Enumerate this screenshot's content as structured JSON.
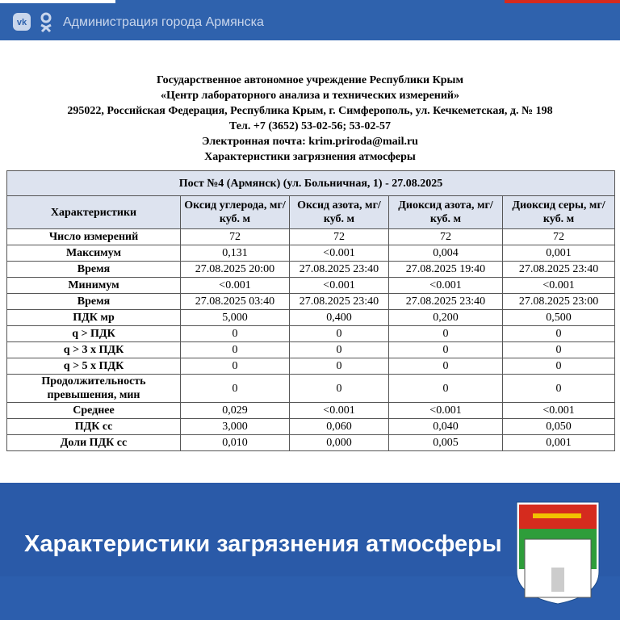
{
  "header": {
    "org": "Администрация города Армянска"
  },
  "document": {
    "lines": [
      "Государственное автономное учреждение Республики Крым",
      "«Центр лабораторного анализа и технических измерений»",
      "295022, Российская Федерация, Республика Крым, г. Симферополь, ул. Кечкеметская, д. № 198",
      "Тел. +7 (3652) 53-02-56; 53-02-57",
      "Электронная почта: krim.priroda@mail.ru",
      "Характеристики загрязнения атмосферы"
    ]
  },
  "table": {
    "caption": "Пост №4 (Армянск) (ул. Больничная, 1) - 27.08.2025",
    "columns": [
      "Характеристики",
      "Оксид углерода, мг/куб. м",
      "Оксид азота, мг/куб. м",
      "Диоксид азота, мг/куб. м",
      "Диоксид серы, мг/куб. м"
    ],
    "rows": [
      [
        "Число измерений",
        "72",
        "72",
        "72",
        "72"
      ],
      [
        "Максимум",
        "0,131",
        "<0.001",
        "0,004",
        "0,001"
      ],
      [
        "Время",
        "27.08.2025 20:00",
        "27.08.2025 23:40",
        "27.08.2025 19:40",
        "27.08.2025 23:40"
      ],
      [
        "Минимум",
        "<0.001",
        "<0.001",
        "<0.001",
        "<0.001"
      ],
      [
        "Время",
        "27.08.2025 03:40",
        "27.08.2025 23:40",
        "27.08.2025 23:40",
        "27.08.2025 23:00"
      ],
      [
        "ПДК мр",
        "5,000",
        "0,400",
        "0,200",
        "0,500"
      ],
      [
        "q > ПДК",
        "0",
        "0",
        "0",
        "0"
      ],
      [
        "q > 3 х ПДК",
        "0",
        "0",
        "0",
        "0"
      ],
      [
        "q > 5 х ПДК",
        "0",
        "0",
        "0",
        "0"
      ],
      [
        "Продолжительность превышения, мин",
        "0",
        "0",
        "0",
        "0"
      ],
      [
        "Среднее",
        "0,029",
        "<0.001",
        "<0.001",
        "<0.001"
      ],
      [
        "ПДК сс",
        "3,000",
        "0,060",
        "0,040",
        "0,050"
      ],
      [
        "Доли ПДК сс",
        "0,010",
        "0,000",
        "0,005",
        "0,001"
      ]
    ]
  },
  "banner": {
    "title": "Характеристики загрязнения атмосферы"
  }
}
